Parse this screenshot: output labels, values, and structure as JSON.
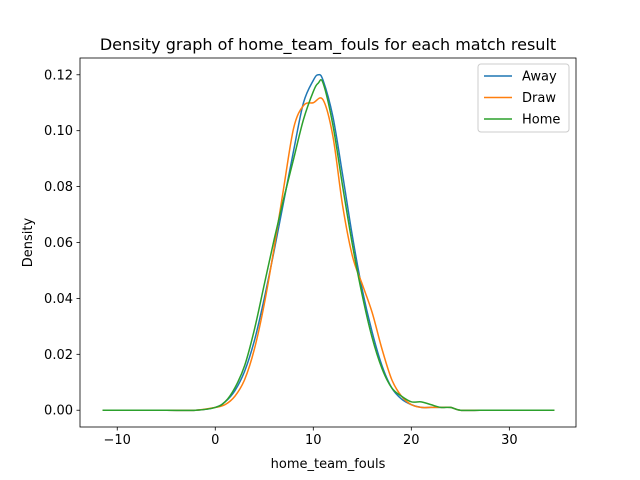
{
  "chart_data": {
    "type": "line",
    "title": "Density graph of home_team_fouls for each match result",
    "xlabel": "home_team_fouls",
    "ylabel": "Density",
    "xlim": [
      -13.8,
      36.8
    ],
    "ylim": [
      -0.006,
      0.126
    ],
    "xticks": [
      -10,
      0,
      10,
      20,
      30
    ],
    "xtick_labels": [
      "−10",
      "0",
      "10",
      "20",
      "30"
    ],
    "yticks": [
      0.0,
      0.02,
      0.04,
      0.06,
      0.08,
      0.1,
      0.12
    ],
    "ytick_labels": [
      "0.00",
      "0.02",
      "0.04",
      "0.06",
      "0.08",
      "0.10",
      "0.12"
    ],
    "grid": false,
    "legend_position": "top-right",
    "series": [
      {
        "name": "Away",
        "color": "#1f77b4",
        "x": [
          -11.5,
          -8,
          -5,
          -2,
          0,
          1,
          2,
          3,
          4,
          5,
          6,
          7,
          8,
          9,
          10,
          10.5,
          11,
          12,
          13,
          14,
          15,
          16,
          17,
          18,
          19,
          20,
          21,
          22,
          23,
          24,
          25,
          27,
          30,
          34.6
        ],
        "y": [
          0.0,
          0.0,
          0.0,
          0.0,
          0.001,
          0.003,
          0.007,
          0.014,
          0.025,
          0.04,
          0.057,
          0.075,
          0.093,
          0.11,
          0.118,
          0.12,
          0.118,
          0.105,
          0.084,
          0.062,
          0.043,
          0.028,
          0.016,
          0.008,
          0.004,
          0.002,
          0.001,
          0.001,
          0.001,
          0.001,
          0.0,
          0.0,
          0.0,
          0.0
        ]
      },
      {
        "name": "Draw",
        "color": "#ff7f0e",
        "x": [
          -11.5,
          -8,
          -5,
          -2,
          0,
          1,
          2,
          3,
          4,
          5,
          6,
          7,
          8,
          9,
          10,
          11,
          12,
          13,
          14,
          15,
          16,
          17,
          18,
          19,
          20,
          21,
          22,
          23,
          24,
          25,
          27,
          30,
          34.6
        ],
        "y": [
          0.0,
          0.0,
          0.0,
          0.0,
          0.001,
          0.002,
          0.005,
          0.011,
          0.022,
          0.038,
          0.058,
          0.08,
          0.101,
          0.109,
          0.11,
          0.111,
          0.098,
          0.073,
          0.055,
          0.045,
          0.035,
          0.022,
          0.011,
          0.005,
          0.002,
          0.001,
          0.001,
          0.001,
          0.001,
          0.0,
          0.0,
          0.0,
          0.0
        ]
      },
      {
        "name": "Home",
        "color": "#2ca02c",
        "x": [
          -11.5,
          -8,
          -5,
          -2,
          0,
          1,
          2,
          3,
          4,
          5,
          6,
          7,
          8,
          9,
          10,
          10.5,
          11,
          12,
          13,
          14,
          15,
          16,
          17,
          18,
          19,
          20,
          21,
          22,
          23,
          24,
          25,
          27,
          30,
          34.6
        ],
        "y": [
          0.0,
          0.0,
          0.0,
          0.0,
          0.001,
          0.003,
          0.008,
          0.016,
          0.029,
          0.045,
          0.061,
          0.076,
          0.09,
          0.104,
          0.114,
          0.117,
          0.117,
          0.102,
          0.08,
          0.059,
          0.041,
          0.026,
          0.015,
          0.008,
          0.005,
          0.003,
          0.003,
          0.002,
          0.001,
          0.001,
          0.0,
          0.0,
          0.0,
          0.0
        ]
      }
    ]
  }
}
